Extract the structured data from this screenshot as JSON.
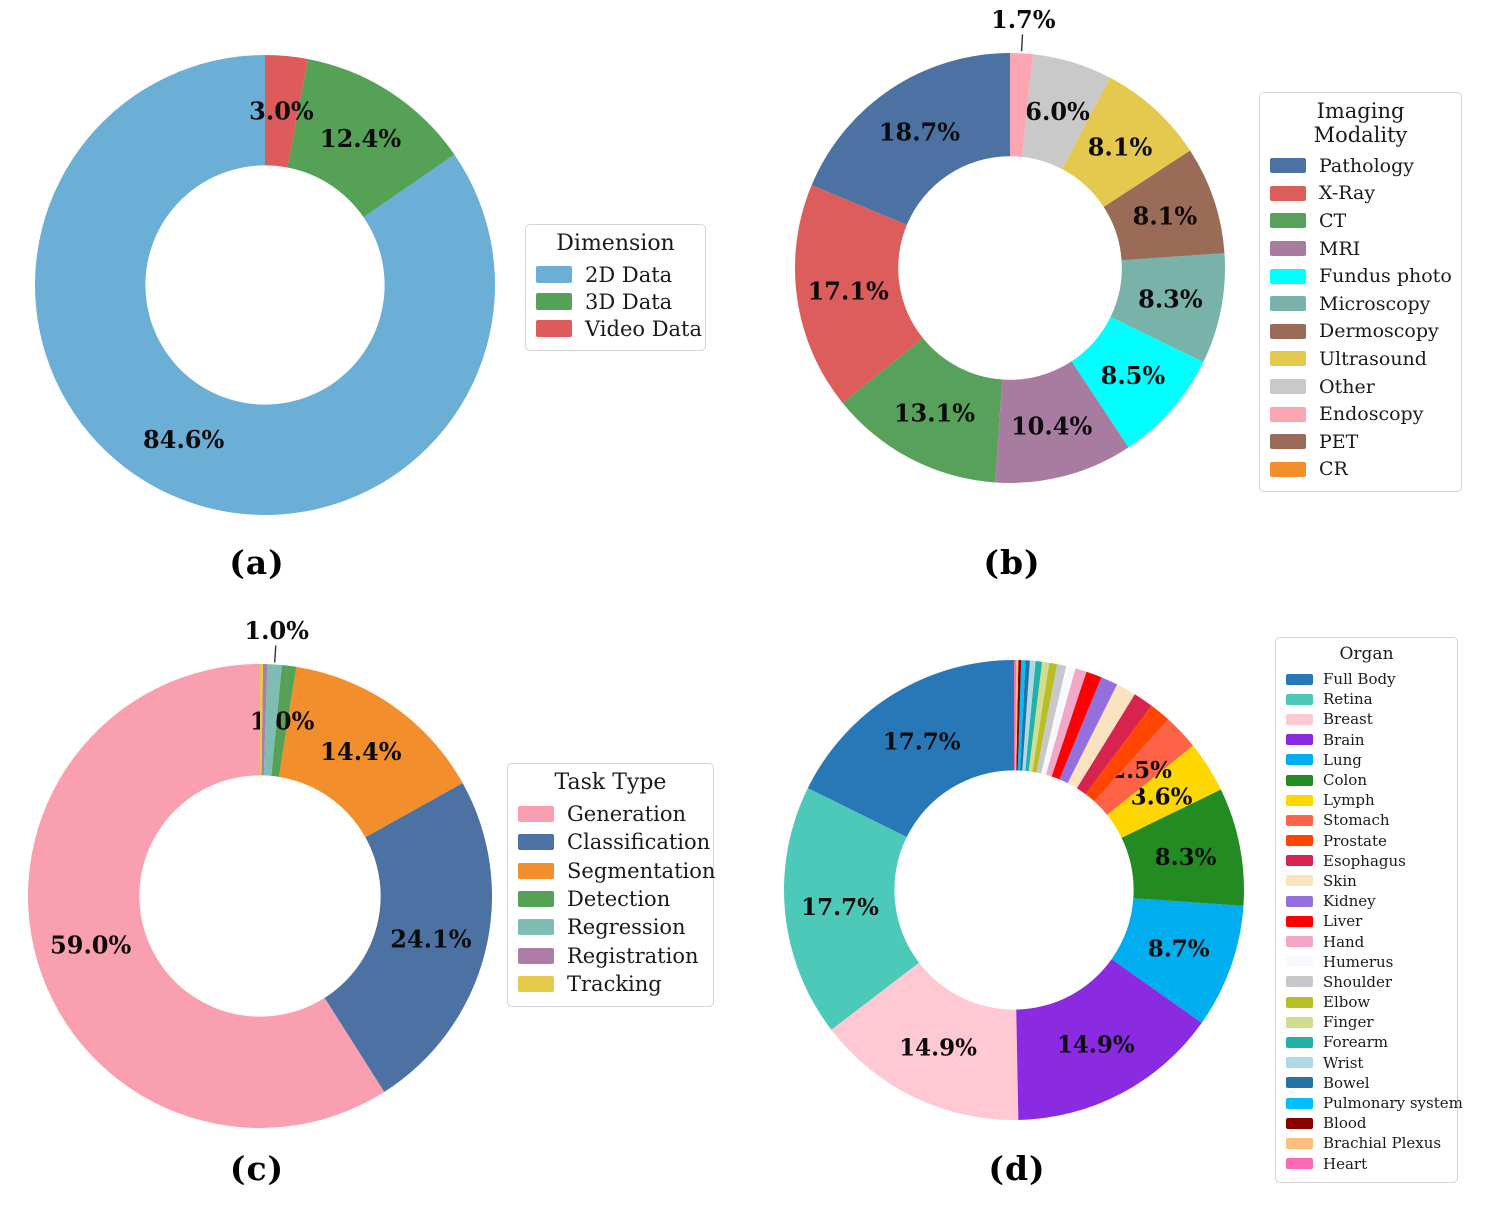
{
  "figure": {
    "captions": [
      "(a)",
      "(b)",
      "(c)",
      "(d)"
    ]
  },
  "chart_data": [
    {
      "id": "a",
      "type": "pie",
      "subtype": "donut",
      "caption": "(a)",
      "legend_title": "Dimension",
      "legend_position": "right",
      "start_angle": 90,
      "direction": "counterclockwise",
      "hole": 0.52,
      "slices": [
        {
          "label": "2D Data",
          "value": 84.6,
          "pct_text": "84.6%",
          "color": "#6BAED6",
          "pct_position": "inside"
        },
        {
          "label": "3D Data",
          "value": 12.4,
          "pct_text": "12.4%",
          "color": "#55A156",
          "pct_position": "inside"
        },
        {
          "label": "Video Data",
          "value": 3.0,
          "pct_text": "3.0%",
          "color": "#DE5B5B",
          "pct_position": "inside"
        }
      ]
    },
    {
      "id": "b",
      "type": "pie",
      "subtype": "donut",
      "caption": "(b)",
      "legend_title": "Imaging Modality",
      "legend_position": "right",
      "start_angle": 90,
      "direction": "counterclockwise",
      "hole": 0.52,
      "slices": [
        {
          "label": "Pathology",
          "value": 18.7,
          "pct_text": "18.7%",
          "color": "#4C72A4",
          "pct_position": "inside"
        },
        {
          "label": "X-Ray",
          "value": 17.1,
          "pct_text": "17.1%",
          "color": "#DD5C5C",
          "pct_position": "inside"
        },
        {
          "label": "CT",
          "value": 13.1,
          "pct_text": "13.1%",
          "color": "#58A15A",
          "pct_position": "inside"
        },
        {
          "label": "MRI",
          "value": 10.4,
          "pct_text": "10.4%",
          "color": "#A87CA0",
          "pct_position": "inside"
        },
        {
          "label": "Fundus photo",
          "value": 8.5,
          "pct_text": "8.5%",
          "color": "#00FFFF",
          "pct_position": "inside"
        },
        {
          "label": "Microscopy",
          "value": 8.3,
          "pct_text": "8.3%",
          "color": "#79B2A9",
          "pct_position": "inside"
        },
        {
          "label": "Dermoscopy",
          "value": 8.1,
          "pct_text": "8.1%",
          "color": "#9A6C57",
          "pct_position": "inside"
        },
        {
          "label": "Ultrasound",
          "value": 8.1,
          "pct_text": "8.1%",
          "color": "#E5C84E",
          "pct_position": "inside"
        },
        {
          "label": "Other",
          "value": 6.0,
          "pct_text": "6.0%",
          "color": "#C9C9C9",
          "pct_position": "inside"
        },
        {
          "label": "Endoscopy",
          "value": 1.7,
          "pct_text": "1.7%",
          "color": "#FCA6B2",
          "pct_position": "outside"
        },
        {
          "label": "PET",
          "value": 0.0,
          "pct_text": "",
          "color": "#9A6C57",
          "pct_position": "none"
        },
        {
          "label": "CR",
          "value": 0.0,
          "pct_text": "",
          "color": "#F28E2B",
          "pct_position": "none"
        }
      ]
    },
    {
      "id": "c",
      "type": "pie",
      "subtype": "donut",
      "caption": "(c)",
      "legend_title": "Task Type",
      "legend_position": "right",
      "start_angle": 90,
      "direction": "counterclockwise",
      "hole": 0.52,
      "slices": [
        {
          "label": "Generation",
          "value": 59.0,
          "pct_text": "59.0%",
          "color": "#FA9FB0",
          "pct_position": "inside"
        },
        {
          "label": "Classification",
          "value": 24.1,
          "pct_text": "24.1%",
          "color": "#4C72A4",
          "pct_position": "inside"
        },
        {
          "label": "Segmentation",
          "value": 14.4,
          "pct_text": "14.4%",
          "color": "#F28E2B",
          "pct_position": "inside"
        },
        {
          "label": "Detection",
          "value": 1.0,
          "pct_text": "1.0%",
          "color": "#55A156",
          "pct_position": "inside"
        },
        {
          "label": "Regression",
          "value": 1.0,
          "pct_text": "1.0%",
          "color": "#7FBCB2",
          "pct_position": "outside"
        },
        {
          "label": "Registration",
          "value": 0.3,
          "pct_text": "",
          "color": "#AE7CA6",
          "pct_position": "none"
        },
        {
          "label": "Tracking",
          "value": 0.2,
          "pct_text": "",
          "color": "#E5CB49",
          "pct_position": "none"
        }
      ]
    },
    {
      "id": "d",
      "type": "pie",
      "subtype": "donut",
      "caption": "(d)",
      "legend_title": "Organ",
      "legend_position": "right",
      "start_angle": 90,
      "direction": "counterclockwise",
      "hole": 0.52,
      "slices": [
        {
          "label": "Full Body",
          "value": 17.7,
          "pct_text": "17.7%",
          "color": "#2878B8",
          "pct_position": "inside"
        },
        {
          "label": "Retina",
          "value": 17.7,
          "pct_text": "17.7%",
          "color": "#4DC9B9",
          "pct_position": "inside"
        },
        {
          "label": "Breast",
          "value": 14.9,
          "pct_text": "14.9%",
          "color": "#FFC8D2",
          "pct_position": "inside"
        },
        {
          "label": "Brain",
          "value": 14.9,
          "pct_text": "14.9%",
          "color": "#8A2BE2",
          "pct_position": "inside"
        },
        {
          "label": "Lung",
          "value": 8.7,
          "pct_text": "8.7%",
          "color": "#00AEEF",
          "pct_position": "inside"
        },
        {
          "label": "Colon",
          "value": 8.3,
          "pct_text": "8.3%",
          "color": "#228B22",
          "pct_position": "inside"
        },
        {
          "label": "Lymph",
          "value": 3.6,
          "pct_text": "3.6%",
          "color": "#FFD700",
          "pct_position": "inside"
        },
        {
          "label": "Stomach",
          "value": 2.5,
          "pct_text": "2.5%",
          "color": "#FF6347",
          "pct_position": "inside"
        },
        {
          "label": "Prostate",
          "value": 1.5,
          "pct_text": "",
          "color": "#FF4500",
          "pct_position": "none"
        },
        {
          "label": "Esophagus",
          "value": 1.4,
          "pct_text": "",
          "color": "#D7234E",
          "pct_position": "none"
        },
        {
          "label": "Skin",
          "value": 1.4,
          "pct_text": "",
          "color": "#FAE3BE",
          "pct_position": "none"
        },
        {
          "label": "Kidney",
          "value": 1.2,
          "pct_text": "",
          "color": "#9370DB",
          "pct_position": "none"
        },
        {
          "label": "Liver",
          "value": 1.1,
          "pct_text": "",
          "color": "#FF0000",
          "pct_position": "none"
        },
        {
          "label": "Hand",
          "value": 0.8,
          "pct_text": "",
          "color": "#F4A6C6",
          "pct_position": "none"
        },
        {
          "label": "Humerus",
          "value": 0.65,
          "pct_text": "",
          "color": "#F8F8FF",
          "pct_position": "none"
        },
        {
          "label": "Shoulder",
          "value": 0.65,
          "pct_text": "",
          "color": "#C8C8CC",
          "pct_position": "none"
        },
        {
          "label": "Elbow",
          "value": 0.55,
          "pct_text": "",
          "color": "#B8BE23",
          "pct_position": "none"
        },
        {
          "label": "Finger",
          "value": 0.5,
          "pct_text": "",
          "color": "#D3DB8E",
          "pct_position": "none"
        },
        {
          "label": "Forearm",
          "value": 0.45,
          "pct_text": "",
          "color": "#21B1A8",
          "pct_position": "none"
        },
        {
          "label": "Wrist",
          "value": 0.4,
          "pct_text": "",
          "color": "#ADD8E6",
          "pct_position": "none"
        },
        {
          "label": "Bowel",
          "value": 0.3,
          "pct_text": "",
          "color": "#2471A3",
          "pct_position": "none"
        },
        {
          "label": "Pulmonary system",
          "value": 0.3,
          "pct_text": "",
          "color": "#00BFFF",
          "pct_position": "none"
        },
        {
          "label": "Blood",
          "value": 0.2,
          "pct_text": "",
          "color": "#8B0000",
          "pct_position": "none"
        },
        {
          "label": "Brachial Plexus",
          "value": 0.15,
          "pct_text": "",
          "color": "#FFBE7D",
          "pct_position": "none"
        },
        {
          "label": "Heart",
          "value": 0.15,
          "pct_text": "",
          "color": "#FF69B4",
          "pct_position": "none"
        }
      ]
    }
  ]
}
